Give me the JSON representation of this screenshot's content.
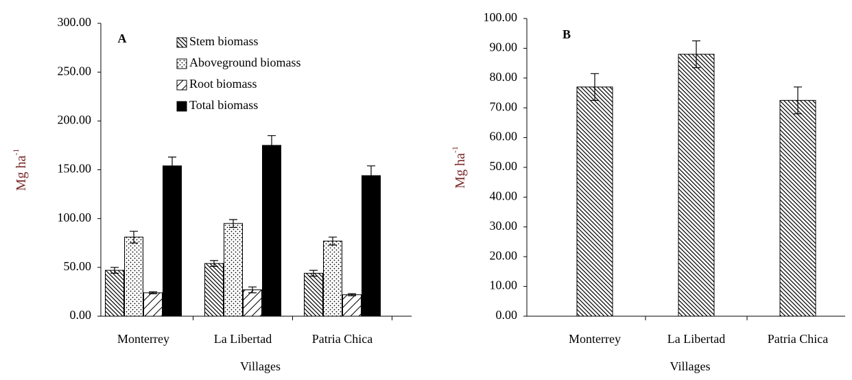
{
  "chart_data": [
    {
      "type": "bar",
      "panel_label": "A",
      "y_label": "Mg ha",
      "y_label_sup": "-1",
      "x_label": "Villages",
      "categories": [
        "Monterrey",
        "La Libertad",
        "Patria Chica"
      ],
      "series": [
        {
          "name": "Stem biomass",
          "pattern": "hatch-back",
          "color": "#000000",
          "values": [
            47,
            54,
            44
          ],
          "errors": [
            3,
            3,
            3
          ]
        },
        {
          "name": "Aboveground biomass",
          "pattern": "dots",
          "color": "#000000",
          "values": [
            81,
            95,
            77
          ],
          "errors": [
            6,
            4,
            4
          ]
        },
        {
          "name": "Root biomass",
          "pattern": "hatch-fwd",
          "color": "#000000",
          "values": [
            24,
            27,
            22
          ],
          "errors": [
            1,
            3,
            1
          ]
        },
        {
          "name": "Total biomass",
          "pattern": "solid",
          "color": "#000000",
          "values": [
            154,
            175,
            144
          ],
          "errors": [
            9,
            10,
            10
          ]
        }
      ],
      "ylim": [
        0,
        300
      ],
      "yticks": [
        {
          "value": 0,
          "label": "0.00"
        },
        {
          "value": 50,
          "label": "50.00"
        },
        {
          "value": 100,
          "label": "100.00"
        },
        {
          "value": 150,
          "label": "150.00"
        },
        {
          "value": 200,
          "label": "200.00"
        },
        {
          "value": 250,
          "label": "250.00"
        },
        {
          "value": 300,
          "label": "300.00"
        }
      ],
      "legend": "top"
    },
    {
      "type": "bar",
      "panel_label": "B",
      "y_label": "Mg ha",
      "y_label_sup": "-1",
      "x_label": "Villages",
      "categories": [
        "Monterrey",
        "La Libertad",
        "Patria Chica"
      ],
      "series": [
        {
          "pattern": "hatch-back",
          "color": "#000000",
          "values": [
            77,
            88,
            72.5
          ],
          "errors": [
            4.5,
            4.5,
            4.5
          ]
        }
      ],
      "ylim": [
        0,
        100
      ],
      "yticks": [
        {
          "value": 0,
          "label": "0.00"
        },
        {
          "value": 10,
          "label": "10.00"
        },
        {
          "value": 20,
          "label": "20.00"
        },
        {
          "value": 30,
          "label": "30.00"
        },
        {
          "value": 40,
          "label": "40.00"
        },
        {
          "value": 50,
          "label": "50.00"
        },
        {
          "value": 60,
          "label": "60.00"
        },
        {
          "value": 70,
          "label": "70.00"
        },
        {
          "value": 80,
          "label": "80.00"
        },
        {
          "value": 90,
          "label": "90.00"
        },
        {
          "value": 100,
          "label": "100.00"
        }
      ]
    }
  ]
}
